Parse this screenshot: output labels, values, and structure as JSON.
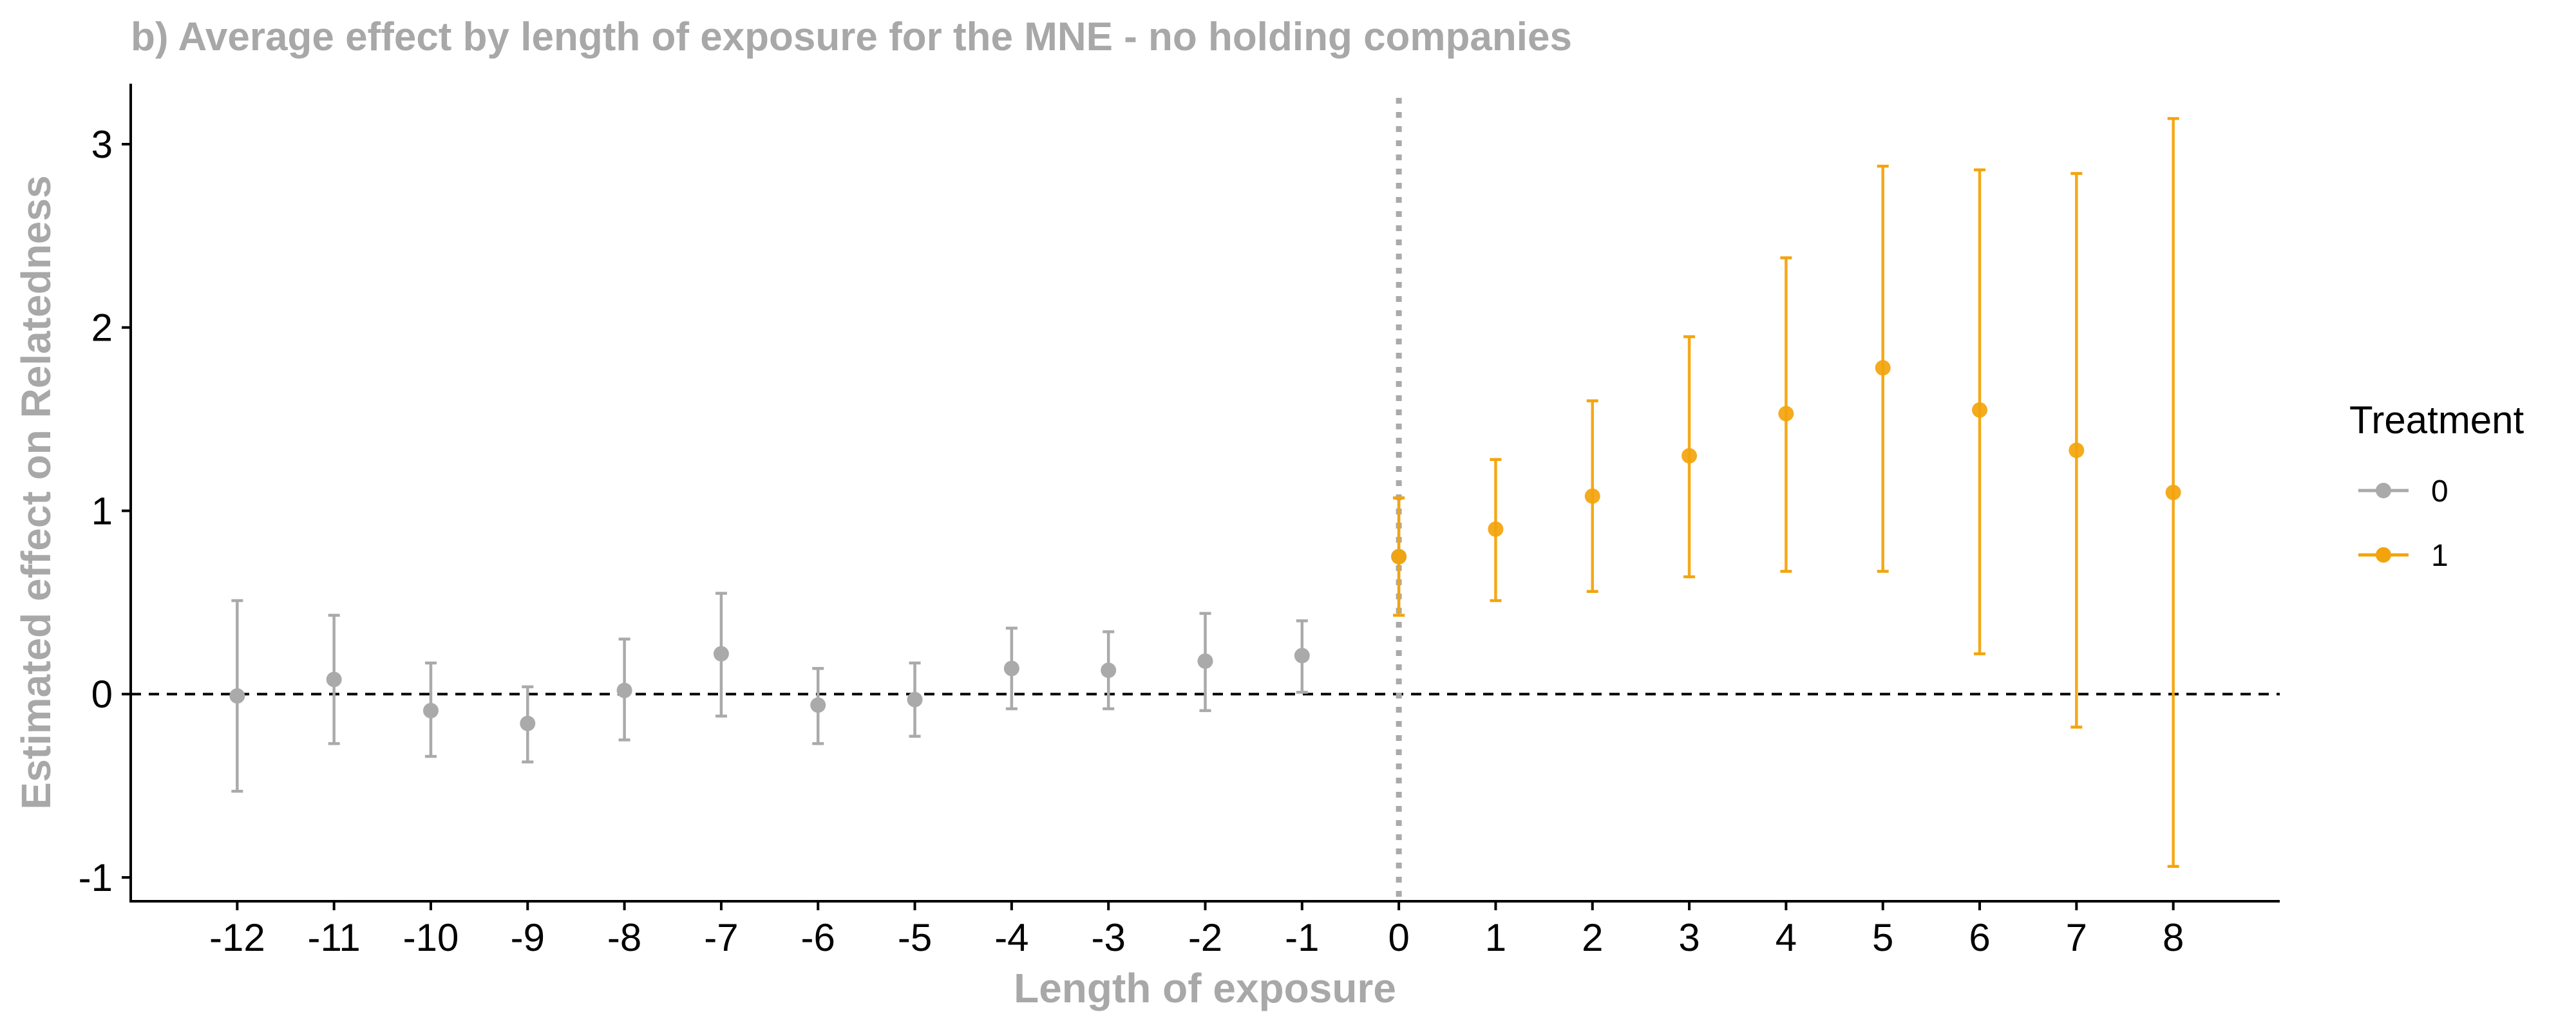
{
  "chart_data": {
    "type": "scatter",
    "title": "b) Average effect by length of exposure for the MNE - no holding companies",
    "xlabel": "Length of exposure",
    "ylabel": "Estimated effect on Relatedness",
    "xlim": [
      -13.1,
      9.1
    ],
    "ylim": [
      -1.13,
      3.33
    ],
    "x_ticks": [
      -12,
      -11,
      -10,
      -9,
      -8,
      -7,
      -6,
      -5,
      -4,
      -3,
      -2,
      -1,
      0,
      1,
      2,
      3,
      4,
      5,
      6,
      7,
      8
    ],
    "y_ticks": [
      -1,
      0,
      1,
      2,
      3
    ],
    "reference_lines": {
      "horizontal_dashed_y": 0,
      "vertical_dotted_x": 0
    },
    "grid": false,
    "legend": {
      "title": "Treatment",
      "placement": "right"
    },
    "series": [
      {
        "name": "0",
        "color": "#aaaaaa",
        "points": [
          {
            "x": -12,
            "y": -0.01,
            "lower": -0.53,
            "upper": 0.51
          },
          {
            "x": -11,
            "y": 0.08,
            "lower": -0.27,
            "upper": 0.43
          },
          {
            "x": -10,
            "y": -0.09,
            "lower": -0.34,
            "upper": 0.17
          },
          {
            "x": -9,
            "y": -0.16,
            "lower": -0.37,
            "upper": 0.04
          },
          {
            "x": -8,
            "y": 0.02,
            "lower": -0.25,
            "upper": 0.3
          },
          {
            "x": -7,
            "y": 0.22,
            "lower": -0.12,
            "upper": 0.55
          },
          {
            "x": -6,
            "y": -0.06,
            "lower": -0.27,
            "upper": 0.14
          },
          {
            "x": -5,
            "y": -0.03,
            "lower": -0.23,
            "upper": 0.17
          },
          {
            "x": -4,
            "y": 0.14,
            "lower": -0.08,
            "upper": 0.36
          },
          {
            "x": -3,
            "y": 0.13,
            "lower": -0.08,
            "upper": 0.34
          },
          {
            "x": -2,
            "y": 0.18,
            "lower": -0.09,
            "upper": 0.44
          },
          {
            "x": -1,
            "y": 0.21,
            "lower": 0.01,
            "upper": 0.4
          },
          {
            "x": 0,
            "y": 0.75,
            "lower": 0.43,
            "upper": 1.07
          }
        ]
      },
      {
        "name": "1",
        "color": "#f3a40c",
        "points": [
          {
            "x": 0,
            "y": 0.75,
            "lower": 0.43,
            "upper": 1.07
          },
          {
            "x": 1,
            "y": 0.9,
            "lower": 0.51,
            "upper": 1.28
          },
          {
            "x": 2,
            "y": 1.08,
            "lower": 0.56,
            "upper": 1.6
          },
          {
            "x": 3,
            "y": 1.3,
            "lower": 0.64,
            "upper": 1.95
          },
          {
            "x": 4,
            "y": 1.53,
            "lower": 0.67,
            "upper": 2.38
          },
          {
            "x": 5,
            "y": 1.78,
            "lower": 0.67,
            "upper": 2.88
          },
          {
            "x": 6,
            "y": 1.55,
            "lower": 0.22,
            "upper": 2.86
          },
          {
            "x": 7,
            "y": 1.33,
            "lower": -0.18,
            "upper": 2.84
          },
          {
            "x": 8,
            "y": 1.1,
            "lower": -0.94,
            "upper": 3.14
          }
        ]
      }
    ]
  }
}
